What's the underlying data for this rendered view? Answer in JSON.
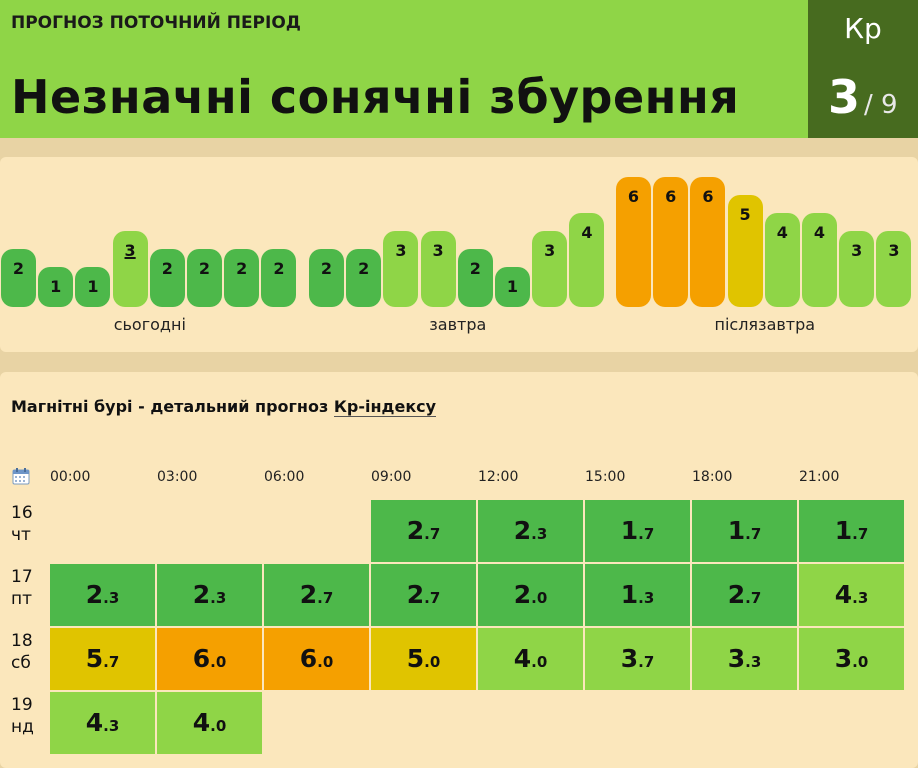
{
  "header": {
    "subtitle": "ПРОГНОЗ ПОТОЧНИЙ ПЕРІОД",
    "title": "Незначні сонячні збурення",
    "kp_label": "Кр",
    "kp_value": "3",
    "kp_max": "/ 9"
  },
  "colors": {
    "kp1": "#8fd547",
    "kp2": "#4db84a",
    "kp3": "#8fd547",
    "kp4": "#8fd547",
    "kp5": "#e0c400",
    "kp6": "#f5a000"
  },
  "bars": {
    "days": [
      {
        "label": "сьогодні",
        "values": [
          2,
          1,
          1,
          3,
          2,
          2,
          2,
          2
        ],
        "current_index": 3
      },
      {
        "label": "завтра",
        "values": [
          2,
          2,
          3,
          3,
          2,
          1,
          3,
          4
        ]
      },
      {
        "label": "післязавтра",
        "values": [
          6,
          6,
          6,
          5,
          4,
          4,
          3,
          3
        ]
      }
    ]
  },
  "forecast": {
    "title_prefix": "Магнітні бурі - детальний прогноз ",
    "title_link": "Кр-індексу",
    "calendar_icon": "calendar-icon",
    "times": [
      "00:00",
      "03:00",
      "06:00",
      "09:00",
      "12:00",
      "15:00",
      "18:00",
      "21:00"
    ],
    "rows": [
      {
        "day": "16",
        "weekday": "чт",
        "values": [
          null,
          null,
          null,
          "2.7",
          "2.3",
          "1.7",
          "1.7",
          "1.7"
        ]
      },
      {
        "day": "17",
        "weekday": "пт",
        "values": [
          "2.3",
          "2.3",
          "2.7",
          "2.7",
          "2.0",
          "1.3",
          "2.7",
          "4.3"
        ]
      },
      {
        "day": "18",
        "weekday": "сб",
        "values": [
          "5.7",
          "6.0",
          "6.0",
          "5.0",
          "4.0",
          "3.7",
          "3.3",
          "3.0"
        ]
      },
      {
        "day": "19",
        "weekday": "нд",
        "values": [
          "4.3",
          "4.0",
          null,
          null,
          null,
          null,
          null,
          null
        ]
      }
    ]
  }
}
